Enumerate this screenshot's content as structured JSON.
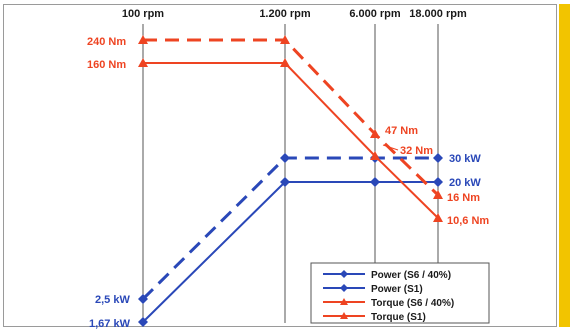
{
  "chart_data": {
    "type": "line",
    "x": [
      "100 rpm",
      "1.200 rpm",
      "6.000 rpm",
      "18.000 rpm"
    ],
    "series": [
      {
        "name": "Power (S6 / 40%)",
        "unit": "kW",
        "color": "#2a48b8",
        "dashed": true,
        "points": [
          {
            "x": "100 rpm",
            "y": 2.5
          },
          {
            "x": "1.200 rpm",
            "y": 30
          },
          {
            "x": "6.000 rpm",
            "y": 30
          },
          {
            "x": "18.000 rpm",
            "y": 30
          }
        ]
      },
      {
        "name": "Power (S1)",
        "unit": "kW",
        "color": "#2a48b8",
        "dashed": false,
        "points": [
          {
            "x": "100 rpm",
            "y": 1.67
          },
          {
            "x": "1.200 rpm",
            "y": 20
          },
          {
            "x": "6.000 rpm",
            "y": 20
          },
          {
            "x": "18.000 rpm",
            "y": 20
          }
        ]
      },
      {
        "name": "Torque (S6 / 40%)",
        "unit": "Nm",
        "color": "#ee4422",
        "dashed": true,
        "points": [
          {
            "x": "100 rpm",
            "y": 240
          },
          {
            "x": "1.200 rpm",
            "y": 240
          },
          {
            "x": "6.000 rpm",
            "y": 47
          },
          {
            "x": "18.000 rpm",
            "y": 16
          }
        ]
      },
      {
        "name": "Torque (S1)",
        "unit": "Nm",
        "color": "#ee4422",
        "dashed": false,
        "points": [
          {
            "x": "100 rpm",
            "y": 160
          },
          {
            "x": "1.200 rpm",
            "y": 160
          },
          {
            "x": "6.000 rpm",
            "y": 32
          },
          {
            "x": "18.000 rpm",
            "y": 10.6
          }
        ]
      }
    ],
    "value_labels": {
      "torque_s6_start": "240 Nm",
      "torque_s1_start": "160 Nm",
      "torque_s6_mid": "47 Nm",
      "torque_s1_mid": "32 Nm",
      "torque_s6_end": "16 Nm",
      "torque_s1_end": "10,6 Nm",
      "power_s6_start": "2,5 kW",
      "power_s1_start": "1,67 kW",
      "power_s6_end": "30 kW",
      "power_s1_end": "20 kW"
    },
    "legend_position": "bottom-right",
    "vertical_gridlines": true
  },
  "colors": {
    "power": "#2a48b8",
    "torque": "#ee4422",
    "side_bar": "#f2c400"
  }
}
